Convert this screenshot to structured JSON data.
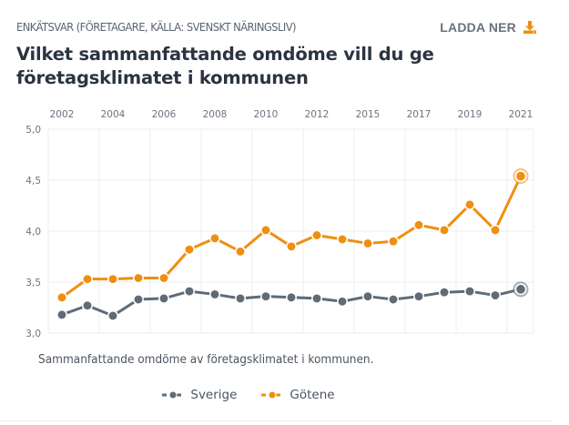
{
  "header": {
    "subtitle": "ENKÄTSVAR (FÖRETAGARE, KÄLLA: SVENSKT NÄRINGSLIV)",
    "download_label": "LADDA NER",
    "download_icon": "download-icon",
    "title": "Vilket sammanfattande omdöme vill du ge företagsklimatet i kommunen"
  },
  "colors": {
    "sverige": "#5f6b77",
    "gotene": "#ee8f12",
    "accent": "#ee8f12",
    "grid": "#eceef1",
    "axis_text": "#6b7480"
  },
  "caption": "Sammanfattande omdöme av företagsklimatet i kommunen.",
  "legend": [
    {
      "label": "Sverige",
      "series": "sverige"
    },
    {
      "label": "Götene",
      "series": "gotene"
    }
  ],
  "chart_data": {
    "type": "line",
    "title": "Vilket sammanfattande omdöme vill du ge företagsklimatet i kommunen",
    "xlabel": "",
    "ylabel": "",
    "x": [
      "2002",
      "2003",
      "2004",
      "2005",
      "2006",
      "2007",
      "2008",
      "2009",
      "2010",
      "2011",
      "2012",
      "2014",
      "2015",
      "2016",
      "2017",
      "2018",
      "2019",
      "2020",
      "2021"
    ],
    "x_tick_labels": [
      "2002",
      "2004",
      "2006",
      "2008",
      "2010",
      "2012",
      "2015",
      "2017",
      "2019",
      "2021"
    ],
    "x_tick_indices": [
      0,
      2,
      4,
      6,
      8,
      10,
      12,
      14,
      16,
      18
    ],
    "x_axis_position": "top",
    "ylim": [
      3.0,
      5.0
    ],
    "y_ticks": [
      3.0,
      3.5,
      4.0,
      4.5,
      5.0
    ],
    "y_tick_labels": [
      "3,0",
      "3,5",
      "4,0",
      "4,5",
      "5,0"
    ],
    "grid": true,
    "legend_position": "bottom-center",
    "series": [
      {
        "name": "Sverige",
        "key": "sverige",
        "values": [
          3.18,
          3.27,
          3.17,
          3.33,
          3.34,
          3.41,
          3.38,
          3.34,
          3.36,
          3.35,
          3.34,
          3.31,
          3.36,
          3.33,
          3.36,
          3.4,
          3.41,
          3.37,
          3.43
        ]
      },
      {
        "name": "Götene",
        "key": "gotene",
        "values": [
          3.35,
          3.53,
          3.53,
          3.54,
          3.54,
          3.82,
          3.93,
          3.8,
          4.01,
          3.85,
          3.96,
          3.92,
          3.88,
          3.9,
          4.06,
          4.01,
          4.26,
          4.01,
          4.54
        ]
      }
    ],
    "highlighted_point": "last"
  }
}
